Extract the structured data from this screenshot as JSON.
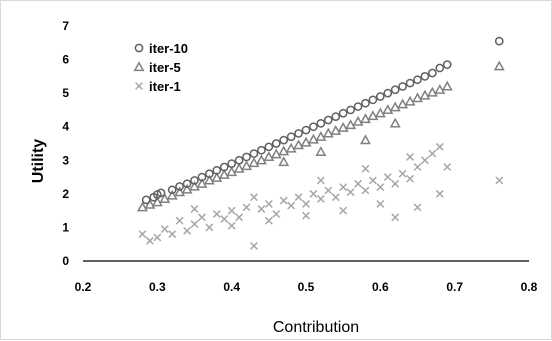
{
  "chart_data": {
    "type": "scatter",
    "xlabel": "Contribution",
    "ylabel": "Utility",
    "xlim": [
      0.2,
      0.8
    ],
    "ylim": [
      0,
      7
    ],
    "xticks": [
      "0.2",
      "0.3",
      "0.4",
      "0.5",
      "0.6",
      "0.7",
      "0.8"
    ],
    "yticks": [
      "0",
      "1",
      "2",
      "3",
      "4",
      "5",
      "6",
      "7"
    ],
    "grid": false,
    "legend_position": "top-left",
    "series": [
      {
        "name": "iter-10",
        "marker": "circle",
        "color": "#606060",
        "points": [
          [
            0.285,
            1.82
          ],
          [
            0.295,
            1.9
          ],
          [
            0.3,
            1.98
          ],
          [
            0.305,
            2.03
          ],
          [
            0.32,
            2.12
          ],
          [
            0.33,
            2.22
          ],
          [
            0.34,
            2.3
          ],
          [
            0.35,
            2.4
          ],
          [
            0.36,
            2.5
          ],
          [
            0.37,
            2.6
          ],
          [
            0.38,
            2.7
          ],
          [
            0.39,
            2.8
          ],
          [
            0.4,
            2.9
          ],
          [
            0.41,
            3.0
          ],
          [
            0.42,
            3.1
          ],
          [
            0.43,
            3.2
          ],
          [
            0.44,
            3.3
          ],
          [
            0.45,
            3.4
          ],
          [
            0.46,
            3.5
          ],
          [
            0.47,
            3.6
          ],
          [
            0.48,
            3.7
          ],
          [
            0.49,
            3.8
          ],
          [
            0.5,
            3.9
          ],
          [
            0.51,
            4.0
          ],
          [
            0.52,
            4.1
          ],
          [
            0.53,
            4.2
          ],
          [
            0.54,
            4.3
          ],
          [
            0.55,
            4.4
          ],
          [
            0.56,
            4.5
          ],
          [
            0.57,
            4.6
          ],
          [
            0.58,
            4.7
          ],
          [
            0.59,
            4.8
          ],
          [
            0.6,
            4.9
          ],
          [
            0.61,
            5.0
          ],
          [
            0.62,
            5.1
          ],
          [
            0.63,
            5.2
          ],
          [
            0.64,
            5.3
          ],
          [
            0.65,
            5.4
          ],
          [
            0.66,
            5.5
          ],
          [
            0.67,
            5.6
          ],
          [
            0.68,
            5.75
          ],
          [
            0.69,
            5.85
          ],
          [
            0.76,
            6.55
          ]
        ]
      },
      {
        "name": "iter-5",
        "marker": "triangle",
        "color": "#808080",
        "points": [
          [
            0.28,
            1.6
          ],
          [
            0.29,
            1.68
          ],
          [
            0.3,
            1.75
          ],
          [
            0.31,
            1.85
          ],
          [
            0.32,
            1.95
          ],
          [
            0.33,
            2.05
          ],
          [
            0.34,
            2.13
          ],
          [
            0.35,
            2.22
          ],
          [
            0.36,
            2.3
          ],
          [
            0.37,
            2.4
          ],
          [
            0.38,
            2.48
          ],
          [
            0.39,
            2.57
          ],
          [
            0.4,
            2.65
          ],
          [
            0.41,
            2.75
          ],
          [
            0.42,
            2.83
          ],
          [
            0.43,
            2.92
          ],
          [
            0.44,
            3.0
          ],
          [
            0.45,
            3.1
          ],
          [
            0.46,
            3.18
          ],
          [
            0.47,
            3.27
          ],
          [
            0.48,
            3.35
          ],
          [
            0.49,
            3.45
          ],
          [
            0.5,
            3.53
          ],
          [
            0.51,
            3.62
          ],
          [
            0.52,
            3.7
          ],
          [
            0.53,
            3.8
          ],
          [
            0.54,
            3.88
          ],
          [
            0.55,
            3.97
          ],
          [
            0.56,
            4.05
          ],
          [
            0.57,
            4.15
          ],
          [
            0.58,
            4.23
          ],
          [
            0.59,
            4.32
          ],
          [
            0.6,
            4.4
          ],
          [
            0.61,
            4.5
          ],
          [
            0.62,
            4.58
          ],
          [
            0.63,
            4.67
          ],
          [
            0.64,
            4.75
          ],
          [
            0.65,
            4.85
          ],
          [
            0.66,
            4.93
          ],
          [
            0.67,
            5.02
          ],
          [
            0.68,
            5.1
          ],
          [
            0.69,
            5.2
          ],
          [
            0.47,
            2.95
          ],
          [
            0.52,
            3.25
          ],
          [
            0.58,
            3.6
          ],
          [
            0.62,
            4.1
          ],
          [
            0.76,
            5.8
          ]
        ]
      },
      {
        "name": "iter-1",
        "marker": "x",
        "color": "#a6a6a6",
        "points": [
          [
            0.28,
            0.8
          ],
          [
            0.29,
            0.6
          ],
          [
            0.3,
            0.7
          ],
          [
            0.31,
            0.95
          ],
          [
            0.32,
            0.8
          ],
          [
            0.33,
            1.2
          ],
          [
            0.34,
            0.9
          ],
          [
            0.35,
            1.1
          ],
          [
            0.36,
            1.3
          ],
          [
            0.37,
            1.0
          ],
          [
            0.38,
            1.4
          ],
          [
            0.39,
            1.25
          ],
          [
            0.4,
            1.5
          ],
          [
            0.41,
            1.3
          ],
          [
            0.42,
            1.6
          ],
          [
            0.43,
            0.45
          ],
          [
            0.44,
            1.55
          ],
          [
            0.45,
            1.7
          ],
          [
            0.46,
            1.4
          ],
          [
            0.47,
            1.8
          ],
          [
            0.48,
            1.65
          ],
          [
            0.49,
            1.9
          ],
          [
            0.5,
            1.7
          ],
          [
            0.51,
            2.0
          ],
          [
            0.52,
            1.85
          ],
          [
            0.53,
            2.1
          ],
          [
            0.54,
            1.9
          ],
          [
            0.55,
            2.2
          ],
          [
            0.56,
            2.05
          ],
          [
            0.57,
            2.3
          ],
          [
            0.58,
            2.1
          ],
          [
            0.59,
            2.4
          ],
          [
            0.6,
            2.2
          ],
          [
            0.61,
            2.5
          ],
          [
            0.62,
            2.3
          ],
          [
            0.63,
            2.6
          ],
          [
            0.64,
            2.45
          ],
          [
            0.65,
            2.8
          ],
          [
            0.66,
            3.0
          ],
          [
            0.67,
            3.2
          ],
          [
            0.68,
            3.4
          ],
          [
            0.69,
            2.8
          ],
          [
            0.4,
            1.05
          ],
          [
            0.45,
            1.2
          ],
          [
            0.5,
            1.35
          ],
          [
            0.55,
            1.5
          ],
          [
            0.6,
            1.7
          ],
          [
            0.62,
            1.3
          ],
          [
            0.65,
            1.6
          ],
          [
            0.68,
            2.0
          ],
          [
            0.35,
            1.55
          ],
          [
            0.43,
            1.9
          ],
          [
            0.52,
            2.4
          ],
          [
            0.58,
            2.75
          ],
          [
            0.64,
            3.1
          ],
          [
            0.76,
            2.4
          ]
        ]
      }
    ]
  }
}
